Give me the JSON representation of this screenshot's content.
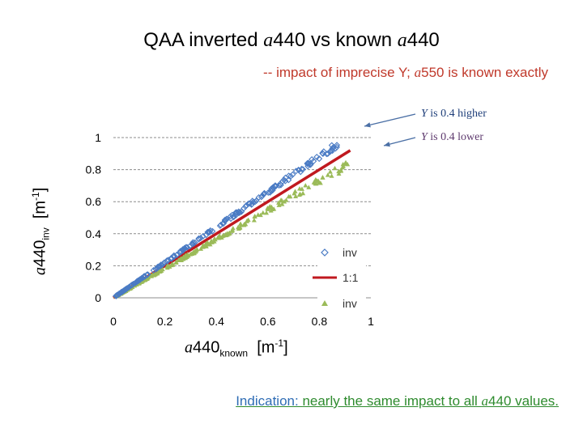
{
  "title": {
    "prefix": "QAA inverted ",
    "sym1": "a",
    "mid": "440 vs known ",
    "sym2": "a",
    "suffix": "440"
  },
  "subtitle": {
    "prefix": "-- impact of imprecise Y; ",
    "sym": "a",
    "suffix": "550 is known exactly"
  },
  "annotations": {
    "higher": {
      "sym": "Y",
      "text": " is 0.4 higher"
    },
    "lower": {
      "sym": "Y",
      "text": " is 0.4 lower"
    }
  },
  "bottom_note": {
    "part1": "Indication: ",
    "part2": "nearly the same impact to all ",
    "sym": "a",
    "part3": "440 values."
  },
  "colors": {
    "higher": "#4a7bc4",
    "ref_line": "#c0191f",
    "lower": "#9bbb59",
    "grid": "#8c8c8c",
    "arrow": "#4a6fa5"
  },
  "chart_data": {
    "type": "scatter",
    "xlabel": {
      "sym": "a",
      "base": "440",
      "sub": "known",
      "unit_open": "[m",
      "unit_sup": "-1",
      "unit_close": "]"
    },
    "ylabel": {
      "sym": "a",
      "base": "440",
      "sub": "inv",
      "unit_open": "[m",
      "unit_sup": "-1",
      "unit_close": "]"
    },
    "xlim": [
      0,
      1
    ],
    "ylim": [
      0,
      1
    ],
    "x_ticks": [
      "0",
      "0.2",
      "0.4",
      "0.6",
      "0.8",
      "1"
    ],
    "y_ticks": [
      "0",
      "0.2",
      "0.4",
      "0.6",
      "0.8",
      "1"
    ],
    "grid": "horizontal dashed",
    "legend_position": "bottom-right inside",
    "series": [
      {
        "name": "inv",
        "marker": "open-diamond",
        "slope": 1.09,
        "x_range": [
          0.01,
          0.88
        ]
      },
      {
        "name": "1:1",
        "marker": "line",
        "slope": 1.0,
        "x_range": [
          0,
          0.92
        ]
      },
      {
        "name": "inv",
        "marker": "triangle",
        "slope": 0.96,
        "x_range": [
          0.01,
          0.95
        ]
      }
    ]
  }
}
